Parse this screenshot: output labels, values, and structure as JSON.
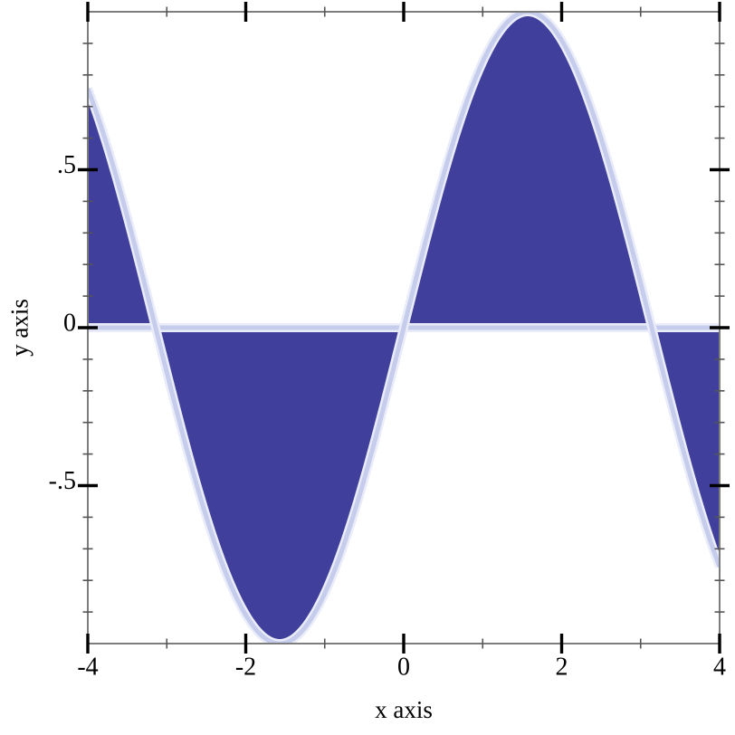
{
  "figure": {
    "xlabel": "x axis",
    "ylabel": "y axis"
  },
  "chart_data": {
    "type": "area",
    "title": "",
    "function": "sin(x)",
    "baseline": 0,
    "x_range": [
      -4,
      4
    ],
    "x": [
      -4,
      -3.5,
      -3,
      -2.5,
      -2,
      -1.5,
      -1,
      -0.5,
      0,
      0.5,
      1,
      1.5,
      2,
      2.5,
      3,
      3.5,
      4
    ],
    "y": [
      0.757,
      0.351,
      -0.141,
      -0.599,
      -0.909,
      -0.997,
      -0.841,
      -0.479,
      0,
      0.479,
      0.841,
      0.997,
      0.909,
      0.599,
      0.141,
      -0.351,
      -0.757
    ],
    "xlabel": "x axis",
    "ylabel": "y axis",
    "xlim": [
      -4,
      4
    ],
    "ylim": [
      -1,
      1
    ],
    "grid": false,
    "legend": null,
    "x_major_ticks": [
      -4,
      -2,
      0,
      2,
      4
    ],
    "x_major_labels": [
      "-4",
      "-2",
      "0",
      "2",
      "4"
    ],
    "x_minor_ticks": [
      -3,
      -1,
      1,
      3
    ],
    "y_major_ticks": [
      0.5,
      0,
      -0.5
    ],
    "y_major_labels": [
      ".5",
      "0",
      "-.5"
    ],
    "y_minor_ticks": [
      -0.9,
      -0.8,
      -0.7,
      -0.6,
      -0.4,
      -0.3,
      -0.2,
      -0.1,
      0.1,
      0.2,
      0.3,
      0.4,
      0.6,
      0.7,
      0.8,
      0.9
    ],
    "colors": {
      "fill": "#403f9c",
      "line_outer": "#eaedf9",
      "line_inner": "#c6cdec",
      "border": "#7d7d7d",
      "major_tick": "#000000",
      "minor_tick": "#555555"
    }
  }
}
